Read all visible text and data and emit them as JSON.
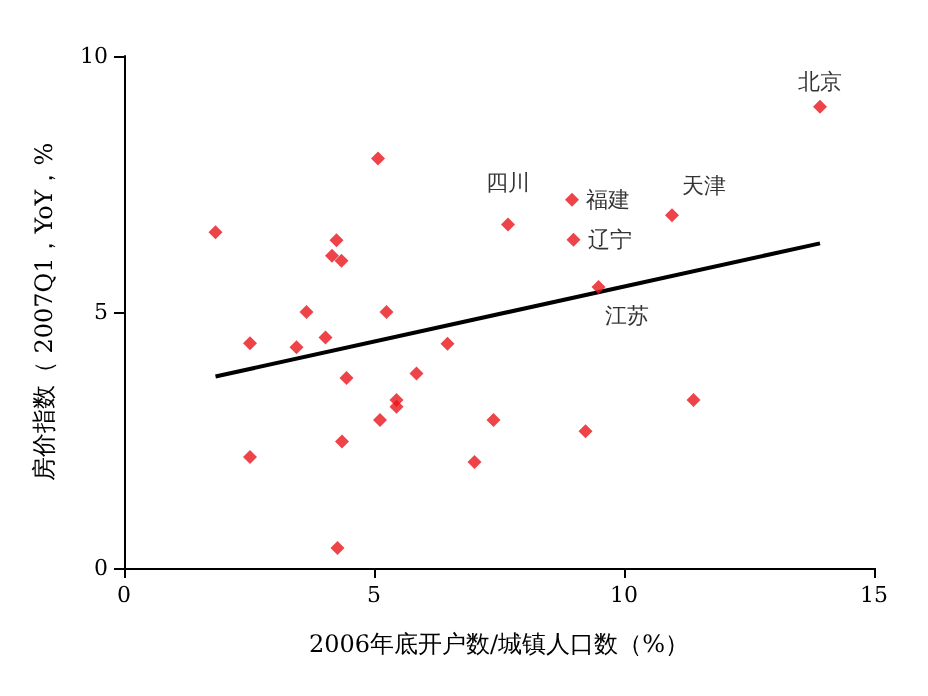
{
  "chart_data": {
    "type": "scatter",
    "xlabel": "2006年底开户数/城镇人口数（%）",
    "ylabel": "房价指数（ 2007Q1，YoY，%",
    "xlim": [
      0,
      15
    ],
    "ylim": [
      0,
      10
    ],
    "xticks": [
      0,
      5,
      10,
      15
    ],
    "yticks": [
      0,
      5,
      10
    ],
    "grid": false,
    "marker": "diamond",
    "series": [
      {
        "color": "#e8141b",
        "x": [
          1.83,
          5.08,
          4.25,
          4.16,
          4.35,
          3.65,
          5.25,
          2.52,
          3.45,
          4.03,
          6.47,
          4.45,
          5.85,
          5.45,
          5.45,
          5.12,
          7.39,
          4.36,
          2.52,
          7.01,
          4.27,
          7.68,
          8.96,
          8.99,
          10.96,
          13.92,
          9.49,
          9.23,
          11.39
        ],
        "values": [
          6.56,
          8.0,
          6.4,
          6.1,
          6.0,
          5.0,
          5.0,
          4.39,
          4.31,
          4.5,
          4.38,
          3.71,
          3.8,
          3.28,
          3.15,
          2.89,
          2.89,
          2.47,
          2.17,
          2.07,
          0.39,
          6.71,
          7.19,
          6.41,
          6.89,
          9.01,
          5.49,
          2.67,
          3.28
        ]
      },
      {
        "type": "line",
        "color": "#000000",
        "marker": "none",
        "x": [
          1.83,
          13.92
        ],
        "values": [
          3.74,
          6.34
        ]
      }
    ],
    "annotations": [
      {
        "text": "四川",
        "x": 7.68,
        "y": 6.71
      },
      {
        "text": "福建",
        "x": 8.96,
        "y": 7.19
      },
      {
        "text": "辽宁",
        "x": 8.99,
        "y": 6.41
      },
      {
        "text": "天津",
        "x": 10.96,
        "y": 6.89
      },
      {
        "text": "北京",
        "x": 13.92,
        "y": 9.01
      },
      {
        "text": "江苏",
        "x": 9.49,
        "y": 5.49
      }
    ]
  }
}
